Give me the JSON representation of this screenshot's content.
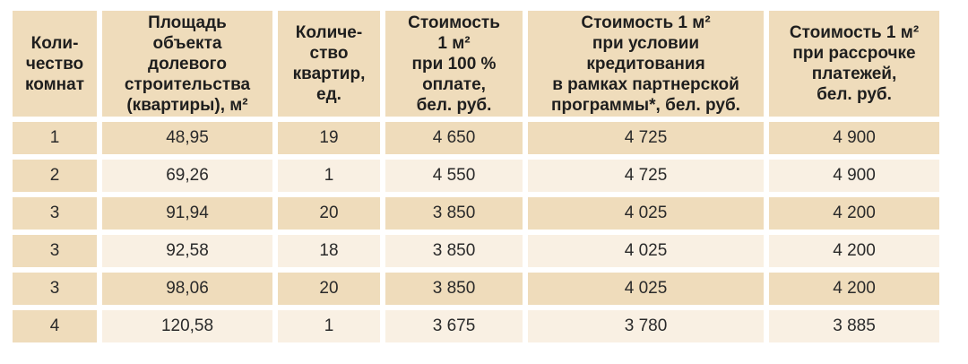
{
  "table": {
    "headers": [
      [
        "Коли-",
        "чество",
        "комнат"
      ],
      [
        "Площадь",
        "объекта",
        "долевого",
        "строительства",
        "(квартиры), м²"
      ],
      [
        "Количе-",
        "ство",
        "квартир,",
        "ед."
      ],
      [
        "Стоимость",
        "1 м²",
        "при 100 %",
        "оплате,",
        "бел. руб."
      ],
      [
        "Стоимость 1 м²",
        "при условии",
        "кредитования",
        "в рамках партнерской",
        "программы*, бел. руб."
      ],
      [
        "Стоимость 1 м²",
        "при рассрочке",
        "платежей,",
        "бел. руб."
      ]
    ],
    "rows": [
      [
        "1",
        "48,95",
        "19",
        "4 650",
        "4 725",
        "4 900"
      ],
      [
        "2",
        "69,26",
        "1",
        "4 550",
        "4 725",
        "4 900"
      ],
      [
        "3",
        "91,94",
        "20",
        "3 850",
        "4 025",
        "4 200"
      ],
      [
        "3",
        "92,58",
        "18",
        "3 850",
        "4 025",
        "4 200"
      ],
      [
        "3",
        "98,06",
        "20",
        "3 850",
        "4 025",
        "4 200"
      ],
      [
        "4",
        "120,58",
        "1",
        "3 675",
        "3 780",
        "3 885"
      ]
    ]
  },
  "colors": {
    "header_bg": "#efdcbb",
    "row_dark": "#efdcbb",
    "row_light": "#f9f0e3"
  }
}
